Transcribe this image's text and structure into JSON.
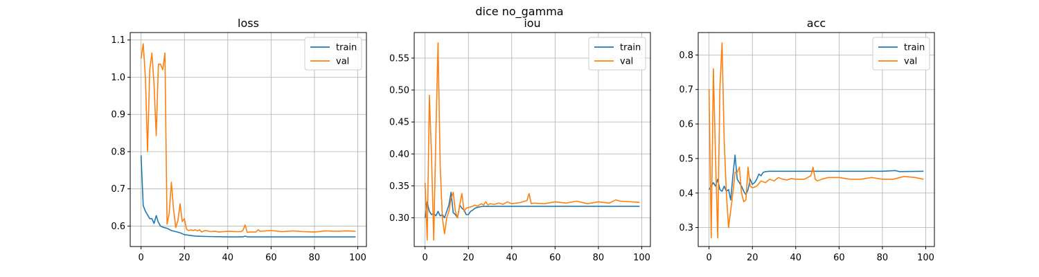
{
  "figure": {
    "suptitle": "dice no_gamma"
  },
  "chart_data": [
    {
      "type": "line",
      "title": "loss",
      "xlabel": "",
      "ylabel": "",
      "xlim": [
        -5,
        104
      ],
      "ylim": [
        0.545,
        1.12
      ],
      "xticks": [
        0,
        20,
        40,
        60,
        80,
        100
      ],
      "yticks": [
        0.6,
        0.7,
        0.8,
        0.9,
        1.0,
        1.1
      ],
      "ytick_labels": [
        "0.6",
        "0.7",
        "0.8",
        "0.9",
        "1.0",
        "1.1"
      ],
      "grid": true,
      "legend_position": "top-right",
      "series": [
        {
          "name": "train",
          "color": "#1f77b4",
          "x": [
            0,
            1,
            2,
            3,
            4,
            5,
            6,
            7,
            8,
            9,
            10,
            12,
            14,
            16,
            18,
            20,
            25,
            30,
            40,
            47,
            48,
            49,
            60,
            80,
            99
          ],
          "y": [
            0.79,
            0.655,
            0.64,
            0.63,
            0.62,
            0.62,
            0.607,
            0.628,
            0.61,
            0.6,
            0.597,
            0.594,
            0.588,
            0.585,
            0.582,
            0.577,
            0.573,
            0.572,
            0.571,
            0.571,
            0.573,
            0.571,
            0.571,
            0.571,
            0.571
          ]
        },
        {
          "name": "val",
          "color": "#ff7f0e",
          "x": [
            0,
            1,
            2,
            3,
            4,
            5,
            6,
            7,
            8,
            9,
            10,
            11,
            12,
            13,
            14,
            15,
            16,
            17,
            18,
            19,
            20,
            21,
            22,
            23,
            24,
            25,
            26,
            27,
            28,
            29,
            30,
            32,
            34,
            36,
            38,
            40,
            44,
            46,
            47,
            48,
            49,
            50,
            53,
            54,
            55,
            60,
            65,
            70,
            75,
            80,
            85,
            90,
            95,
            99
          ],
          "y": [
            1.05,
            1.09,
            1.0,
            0.8,
            1.02,
            1.065,
            0.98,
            0.843,
            1.035,
            1.035,
            1.02,
            1.065,
            0.605,
            0.635,
            0.718,
            0.645,
            0.596,
            0.615,
            0.66,
            0.612,
            0.62,
            0.591,
            0.588,
            0.59,
            0.588,
            0.59,
            0.587,
            0.59,
            0.584,
            0.587,
            0.588,
            0.585,
            0.586,
            0.584,
            0.585,
            0.586,
            0.585,
            0.585,
            0.588,
            0.603,
            0.583,
            0.584,
            0.584,
            0.59,
            0.586,
            0.588,
            0.585,
            0.587,
            0.585,
            0.584,
            0.587,
            0.586,
            0.587,
            0.586
          ]
        }
      ]
    },
    {
      "type": "line",
      "title": "iou",
      "xlabel": "",
      "ylabel": "",
      "xlim": [
        -5,
        104
      ],
      "ylim": [
        0.255,
        0.59
      ],
      "xticks": [
        0,
        20,
        40,
        60,
        80,
        100
      ],
      "yticks": [
        0.3,
        0.35,
        0.4,
        0.45,
        0.5,
        0.55
      ],
      "ytick_labels": [
        "0.30",
        "0.35",
        "0.40",
        "0.45",
        "0.50",
        "0.55"
      ],
      "grid": true,
      "legend_position": "top-right",
      "series": [
        {
          "name": "train",
          "color": "#1f77b4",
          "x": [
            0,
            1,
            2,
            3,
            4,
            5,
            6,
            7,
            8,
            9,
            10,
            11,
            12,
            13,
            14,
            15,
            16,
            17,
            18,
            19,
            20,
            21,
            22,
            23,
            24,
            25,
            27,
            30,
            40,
            50,
            60,
            70,
            80,
            90,
            99
          ],
          "y": [
            0.3,
            0.325,
            0.31,
            0.305,
            0.307,
            0.303,
            0.31,
            0.303,
            0.305,
            0.3,
            0.31,
            0.32,
            0.34,
            0.308,
            0.305,
            0.3,
            0.32,
            0.315,
            0.312,
            0.305,
            0.305,
            0.31,
            0.312,
            0.315,
            0.316,
            0.317,
            0.318,
            0.318,
            0.318,
            0.318,
            0.318,
            0.318,
            0.318,
            0.318,
            0.318
          ]
        },
        {
          "name": "val",
          "color": "#ff7f0e",
          "x": [
            0,
            1,
            2,
            3,
            4,
            5,
            6,
            7,
            8,
            9,
            10,
            11,
            12,
            13,
            14,
            15,
            16,
            17,
            18,
            19,
            20,
            21,
            22,
            23,
            24,
            25,
            26,
            27,
            28,
            29,
            30,
            32,
            34,
            36,
            38,
            40,
            44,
            47,
            48,
            49,
            50,
            55,
            60,
            65,
            70,
            75,
            80,
            85,
            88,
            90,
            95,
            99
          ],
          "y": [
            0.355,
            0.265,
            0.492,
            0.395,
            0.265,
            0.43,
            0.574,
            0.38,
            0.3,
            0.275,
            0.3,
            0.31,
            0.33,
            0.34,
            0.31,
            0.3,
            0.32,
            0.338,
            0.31,
            0.315,
            0.316,
            0.317,
            0.318,
            0.32,
            0.318,
            0.32,
            0.322,
            0.32,
            0.325,
            0.32,
            0.322,
            0.321,
            0.323,
            0.321,
            0.325,
            0.322,
            0.324,
            0.327,
            0.338,
            0.322,
            0.323,
            0.322,
            0.325,
            0.323,
            0.326,
            0.322,
            0.325,
            0.323,
            0.328,
            0.326,
            0.325,
            0.324
          ]
        }
      ]
    },
    {
      "type": "line",
      "title": "acc",
      "xlabel": "",
      "ylabel": "",
      "xlim": [
        -5,
        104
      ],
      "ylim": [
        0.245,
        0.865
      ],
      "xticks": [
        0,
        20,
        40,
        60,
        80,
        100
      ],
      "yticks": [
        0.3,
        0.4,
        0.5,
        0.6,
        0.7,
        0.8
      ],
      "ytick_labels": [
        "0.3",
        "0.4",
        "0.5",
        "0.6",
        "0.7",
        "0.8"
      ],
      "grid": true,
      "legend_position": "top-right",
      "series": [
        {
          "name": "train",
          "color": "#1f77b4",
          "x": [
            0,
            1,
            2,
            3,
            4,
            5,
            6,
            7,
            8,
            9,
            10,
            11,
            12,
            13,
            14,
            15,
            16,
            17,
            18,
            19,
            20,
            21,
            22,
            23,
            24,
            25,
            26,
            28,
            30,
            40,
            50,
            60,
            70,
            80,
            86,
            88,
            99
          ],
          "y": [
            0.41,
            0.42,
            0.43,
            0.42,
            0.44,
            0.41,
            0.405,
            0.42,
            0.405,
            0.41,
            0.38,
            0.45,
            0.51,
            0.44,
            0.43,
            0.42,
            0.405,
            0.395,
            0.41,
            0.44,
            0.425,
            0.43,
            0.44,
            0.455,
            0.45,
            0.46,
            0.462,
            0.463,
            0.463,
            0.463,
            0.463,
            0.463,
            0.463,
            0.463,
            0.465,
            0.462,
            0.463
          ]
        },
        {
          "name": "val",
          "color": "#ff7f0e",
          "x": [
            0,
            1,
            2,
            3,
            4,
            5,
            6,
            7,
            8,
            9,
            10,
            11,
            12,
            13,
            14,
            15,
            16,
            17,
            18,
            19,
            20,
            22,
            24,
            26,
            28,
            30,
            32,
            34,
            36,
            38,
            40,
            44,
            47,
            48,
            49,
            50,
            52,
            55,
            60,
            65,
            70,
            75,
            80,
            85,
            90,
            95,
            99
          ],
          "y": [
            0.7,
            0.27,
            0.76,
            0.5,
            0.27,
            0.7,
            0.835,
            0.55,
            0.4,
            0.3,
            0.35,
            0.4,
            0.46,
            0.46,
            0.475,
            0.4,
            0.375,
            0.38,
            0.475,
            0.42,
            0.415,
            0.42,
            0.435,
            0.43,
            0.44,
            0.435,
            0.445,
            0.44,
            0.438,
            0.442,
            0.44,
            0.44,
            0.45,
            0.475,
            0.44,
            0.435,
            0.44,
            0.445,
            0.445,
            0.44,
            0.44,
            0.445,
            0.44,
            0.44,
            0.448,
            0.445,
            0.44
          ]
        }
      ]
    }
  ]
}
